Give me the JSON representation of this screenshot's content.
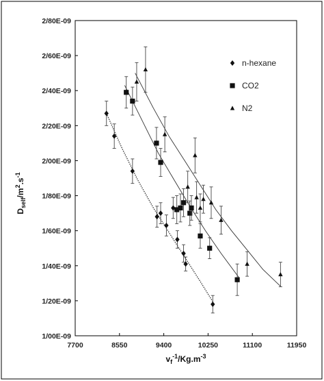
{
  "chart_data": {
    "type": "scatter",
    "title": "",
    "xlabel": {
      "main": "v",
      "sub": "f",
      "sup": "-1",
      "rest": "/Kg.m",
      "sup2": "-3"
    },
    "ylabel": {
      "main": "D",
      "sub": "self",
      "rest": "/m",
      "sup": "2",
      "rest2": ".s",
      "sup2": "-1"
    },
    "xlim": [
      7700,
      11950
    ],
    "ylim": [
      1e-09,
      2.8e-09
    ],
    "x_ticks": [
      7700,
      8550,
      9400,
      10250,
      11100,
      11950
    ],
    "x_tick_labels": [
      "7700",
      "8550",
      "9400",
      "10250",
      "11100",
      "11950"
    ],
    "y_ticks": [
      1e-09,
      1.2e-09,
      1.4e-09,
      1.6e-09,
      1.8e-09,
      2e-09,
      2.2e-09,
      2.4e-09,
      2.6e-09,
      2.8e-09
    ],
    "y_tick_labels": [
      "1/00E-09",
      "1/20E-09",
      "1/40E-09",
      "1/60E-09",
      "1/80E-09",
      "2/00E-09",
      "2/20E-09",
      "2/40E-09",
      "2/60E-09",
      "2/80E-09"
    ],
    "grid": false,
    "legend_position": "top-right",
    "series": [
      {
        "name": "n-hexane",
        "marker": "diamond",
        "line_style": "dotted",
        "color": "#111111",
        "x": [
          8300,
          8450,
          8800,
          9270,
          9340,
          9450,
          9580,
          9660,
          9780,
          9820,
          10340
        ],
        "y": [
          2.27e-09,
          2.14e-09,
          1.94e-09,
          1.68e-09,
          1.7e-09,
          1.63e-09,
          1.73e-09,
          1.55e-09,
          1.47e-09,
          1.41e-09,
          1.18e-09
        ],
        "err": [
          7e-11,
          7e-11,
          7e-11,
          6e-11,
          6e-11,
          6e-11,
          6e-11,
          5e-11,
          5e-11,
          4e-11,
          5e-11
        ],
        "fit": [
          [
            8300,
            2.27e-09
          ],
          [
            8600,
            2.07e-09
          ],
          [
            8900,
            1.89e-09
          ],
          [
            9200,
            1.73e-09
          ],
          [
            9500,
            1.59e-09
          ],
          [
            9800,
            1.45e-09
          ],
          [
            10100,
            1.31e-09
          ],
          [
            10350,
            1.19e-09
          ]
        ]
      },
      {
        "name": "CO2",
        "marker": "square",
        "line_style": "solid",
        "color": "#111111",
        "x": [
          8680,
          8800,
          9260,
          9340,
          9650,
          9720,
          9780,
          9900,
          9930,
          10100,
          10280,
          10810
        ],
        "y": [
          2.39e-09,
          2.34e-09,
          2.1e-09,
          1.99e-09,
          1.72e-09,
          1.73e-09,
          1.76e-09,
          1.7e-09,
          1.73e-09,
          1.57e-09,
          1.5e-09,
          1.32e-09
        ],
        "err": [
          9e-11,
          8e-11,
          9e-11,
          8e-11,
          8e-11,
          8e-11,
          8e-11,
          7e-11,
          7e-11,
          7e-11,
          6e-11,
          9e-11
        ],
        "fit": [
          [
            8650,
            2.43e-09
          ],
          [
            9000,
            2.22e-09
          ],
          [
            9300,
            2.04e-09
          ],
          [
            9600,
            1.89e-09
          ],
          [
            9900,
            1.74e-09
          ],
          [
            10200,
            1.6e-09
          ],
          [
            10500,
            1.47e-09
          ],
          [
            10800,
            1.35e-09
          ],
          [
            10850,
            1.33e-09
          ]
        ]
      },
      {
        "name": "N2",
        "marker": "triangle",
        "line_style": "solid",
        "color": "#111111",
        "x": [
          8880,
          9050,
          9420,
          9860,
          10000,
          10030,
          10100,
          10160,
          10310,
          10500,
          11000,
          11640
        ],
        "y": [
          2.45e-09,
          2.52e-09,
          2.15e-09,
          1.85e-09,
          2.03e-09,
          1.79e-09,
          1.73e-09,
          1.78e-09,
          1.76e-09,
          1.66e-09,
          1.41e-09,
          1.35e-09
        ],
        "err": [
          1.1e-10,
          1.3e-10,
          1e-10,
          9e-11,
          1e-10,
          9e-11,
          8e-11,
          8e-11,
          9e-11,
          8e-11,
          7e-11,
          7e-11
        ],
        "fit": [
          [
            8850,
            2.5e-09
          ],
          [
            9200,
            2.3e-09
          ],
          [
            9500,
            2.14e-09
          ],
          [
            9800,
            2e-09
          ],
          [
            10100,
            1.86e-09
          ],
          [
            10400,
            1.72e-09
          ],
          [
            10700,
            1.6e-09
          ],
          [
            11000,
            1.49e-09
          ],
          [
            11300,
            1.38e-09
          ],
          [
            11650,
            1.28e-09
          ]
        ]
      }
    ]
  }
}
